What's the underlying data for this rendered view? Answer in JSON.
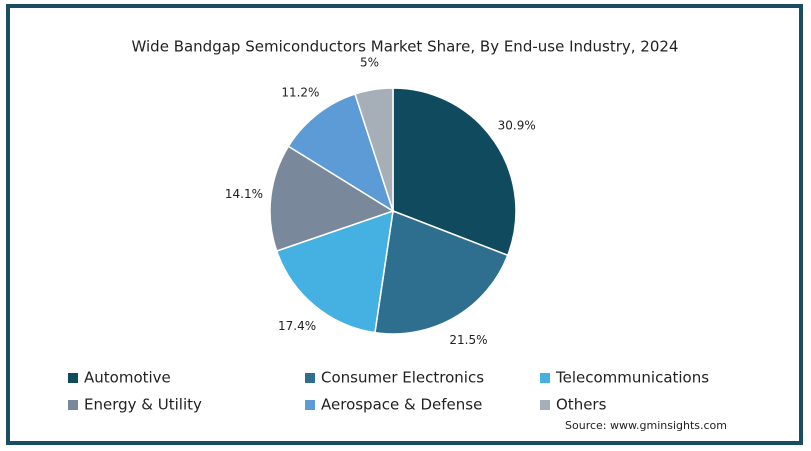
{
  "chart_data": {
    "type": "pie",
    "title": "Wide Bandgap Semiconductors Market Share, By End-use Industry, 2024",
    "categories": [
      "Automotive",
      "Consumer Electronics",
      "Telecommunications",
      "Energy & Utility",
      "Aerospace & Defense",
      "Others"
    ],
    "values": [
      30.9,
      21.5,
      17.4,
      14.1,
      11.2,
      5
    ],
    "value_labels": [
      "30.9%",
      "21.5%",
      "17.4%",
      "14.1%",
      "11.2%",
      "5%"
    ],
    "colors": [
      "#0f4a5f",
      "#2e6e8e",
      "#45b1e2",
      "#79889a",
      "#5c9bd6",
      "#a6afb8"
    ],
    "source": "Source: www.gminsights.com"
  }
}
